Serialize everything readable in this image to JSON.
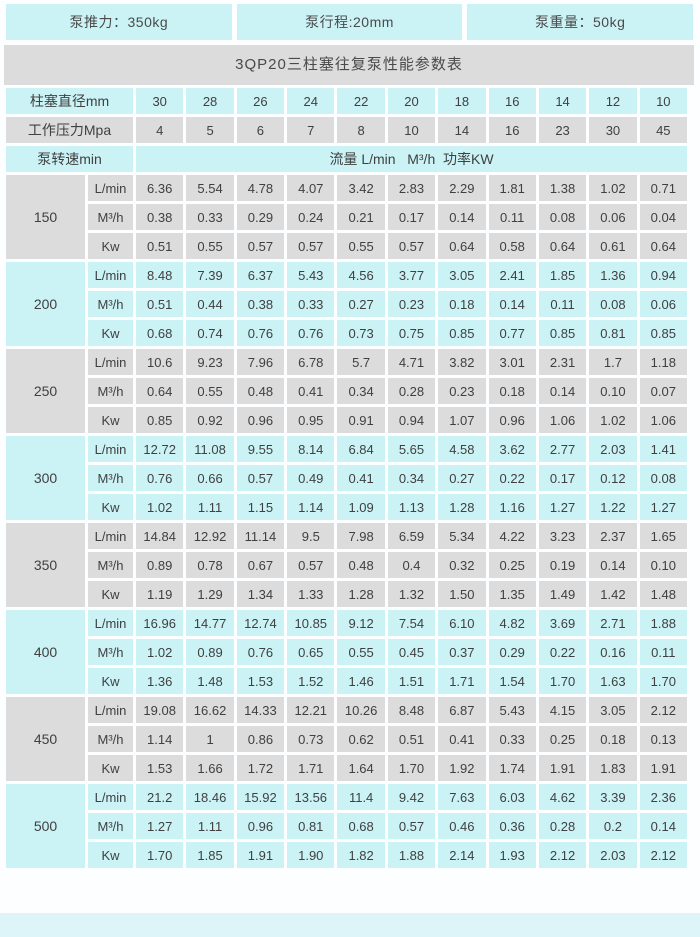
{
  "info_bar": {
    "thrust": "泵推力：350kg",
    "stroke": "泵行程:20mm",
    "weight": "泵重量：50kg"
  },
  "title": "3QP20三柱塞往复泵性能参数表",
  "colors": {
    "cell_cyan": "#cbf3f6",
    "cell_gray": "#dcdcdc",
    "title_gray": "#dcdcdc",
    "bottom_strip": "#ddf5f8",
    "text": "#404040"
  },
  "table": {
    "diameter_header": "柱塞直径mm",
    "diameters": [
      "30",
      "28",
      "26",
      "24",
      "22",
      "20",
      "18",
      "16",
      "14",
      "12",
      "10"
    ],
    "pressure_header": "工作压力Mpa",
    "pressures": [
      "4",
      "5",
      "6",
      "7",
      "8",
      "10",
      "14",
      "16",
      "23",
      "30",
      "45"
    ],
    "speed_header": "泵转速min",
    "flow_header": "流量 L/min   M³/h  功率KW",
    "unit_labels": [
      "L/min",
      "M³/h",
      "Kw"
    ],
    "groups": [
      {
        "rpm": "150",
        "rows": [
          [
            "6.36",
            "5.54",
            "4.78",
            "4.07",
            "3.42",
            "2.83",
            "2.29",
            "1.81",
            "1.38",
            "1.02",
            "0.71"
          ],
          [
            "0.38",
            "0.33",
            "0.29",
            "0.24",
            "0.21",
            "0.17",
            "0.14",
            "0.11",
            "0.08",
            "0.06",
            "0.04"
          ],
          [
            "0.51",
            "0.55",
            "0.57",
            "0.57",
            "0.55",
            "0.57",
            "0.64",
            "0.58",
            "0.64",
            "0.61",
            "0.64"
          ]
        ]
      },
      {
        "rpm": "200",
        "rows": [
          [
            "8.48",
            "7.39",
            "6.37",
            "5.43",
            "4.56",
            "3.77",
            "3.05",
            "2.41",
            "1.85",
            "1.36",
            "0.94"
          ],
          [
            "0.51",
            "0.44",
            "0.38",
            "0.33",
            "0.27",
            "0.23",
            "0.18",
            "0.14",
            "0.11",
            "0.08",
            "0.06"
          ],
          [
            "0.68",
            "0.74",
            "0.76",
            "0.76",
            "0.73",
            "0.75",
            "0.85",
            "0.77",
            "0.85",
            "0.81",
            "0.85"
          ]
        ]
      },
      {
        "rpm": "250",
        "rows": [
          [
            "10.6",
            "9.23",
            "7.96",
            "6.78",
            "5.7",
            "4.71",
            "3.82",
            "3.01",
            "2.31",
            "1.7",
            "1.18"
          ],
          [
            "0.64",
            "0.55",
            "0.48",
            "0.41",
            "0.34",
            "0.28",
            "0.23",
            "0.18",
            "0.14",
            "0.10",
            "0.07"
          ],
          [
            "0.85",
            "0.92",
            "0.96",
            "0.95",
            "0.91",
            "0.94",
            "1.07",
            "0.96",
            "1.06",
            "1.02",
            "1.06"
          ]
        ]
      },
      {
        "rpm": "300",
        "rows": [
          [
            "12.72",
            "11.08",
            "9.55",
            "8.14",
            "6.84",
            "5.65",
            "4.58",
            "3.62",
            "2.77",
            "2.03",
            "1.41"
          ],
          [
            "0.76",
            "0.66",
            "0.57",
            "0.49",
            "0.41",
            "0.34",
            "0.27",
            "0.22",
            "0.17",
            "0.12",
            "0.08"
          ],
          [
            "1.02",
            "1.11",
            "1.15",
            "1.14",
            "1.09",
            "1.13",
            "1.28",
            "1.16",
            "1.27",
            "1.22",
            "1.27"
          ]
        ]
      },
      {
        "rpm": "350",
        "rows": [
          [
            "14.84",
            "12.92",
            "11.14",
            "9.5",
            "7.98",
            "6.59",
            "5.34",
            "4.22",
            "3.23",
            "2.37",
            "1.65"
          ],
          [
            "0.89",
            "0.78",
            "0.67",
            "0.57",
            "0.48",
            "0.4",
            "0.32",
            "0.25",
            "0.19",
            "0.14",
            "0.10"
          ],
          [
            "1.19",
            "1.29",
            "1.34",
            "1.33",
            "1.28",
            "1.32",
            "1.50",
            "1.35",
            "1.49",
            "1.42",
            "1.48"
          ]
        ]
      },
      {
        "rpm": "400",
        "rows": [
          [
            "16.96",
            "14.77",
            "12.74",
            "10.85",
            "9.12",
            "7.54",
            "6.10",
            "4.82",
            "3.69",
            "2.71",
            "1.88"
          ],
          [
            "1.02",
            "0.89",
            "0.76",
            "0.65",
            "0.55",
            "0.45",
            "0.37",
            "0.29",
            "0.22",
            "0.16",
            "0.11"
          ],
          [
            "1.36",
            "1.48",
            "1.53",
            "1.52",
            "1.46",
            "1.51",
            "1.71",
            "1.54",
            "1.70",
            "1.63",
            "1.70"
          ]
        ]
      },
      {
        "rpm": "450",
        "rows": [
          [
            "19.08",
            "16.62",
            "14.33",
            "12.21",
            "10.26",
            "8.48",
            "6.87",
            "5.43",
            "4.15",
            "3.05",
            "2.12"
          ],
          [
            "1.14",
            "1",
            "0.86",
            "0.73",
            "0.62",
            "0.51",
            "0.41",
            "0.33",
            "0.25",
            "0.18",
            "0.13"
          ],
          [
            "1.53",
            "1.66",
            "1.72",
            "1.71",
            "1.64",
            "1.70",
            "1.92",
            "1.74",
            "1.91",
            "1.83",
            "1.91"
          ]
        ]
      },
      {
        "rpm": "500",
        "rows": [
          [
            "21.2",
            "18.46",
            "15.92",
            "13.56",
            "11.4",
            "9.42",
            "7.63",
            "6.03",
            "4.62",
            "3.39",
            "2.36"
          ],
          [
            "1.27",
            "1.11",
            "0.96",
            "0.81",
            "0.68",
            "0.57",
            "0.46",
            "0.36",
            "0.28",
            "0.2",
            "0.14"
          ],
          [
            "1.70",
            "1.85",
            "1.91",
            "1.90",
            "1.82",
            "1.88",
            "2.14",
            "1.93",
            "2.12",
            "2.03",
            "2.12"
          ]
        ]
      }
    ]
  }
}
